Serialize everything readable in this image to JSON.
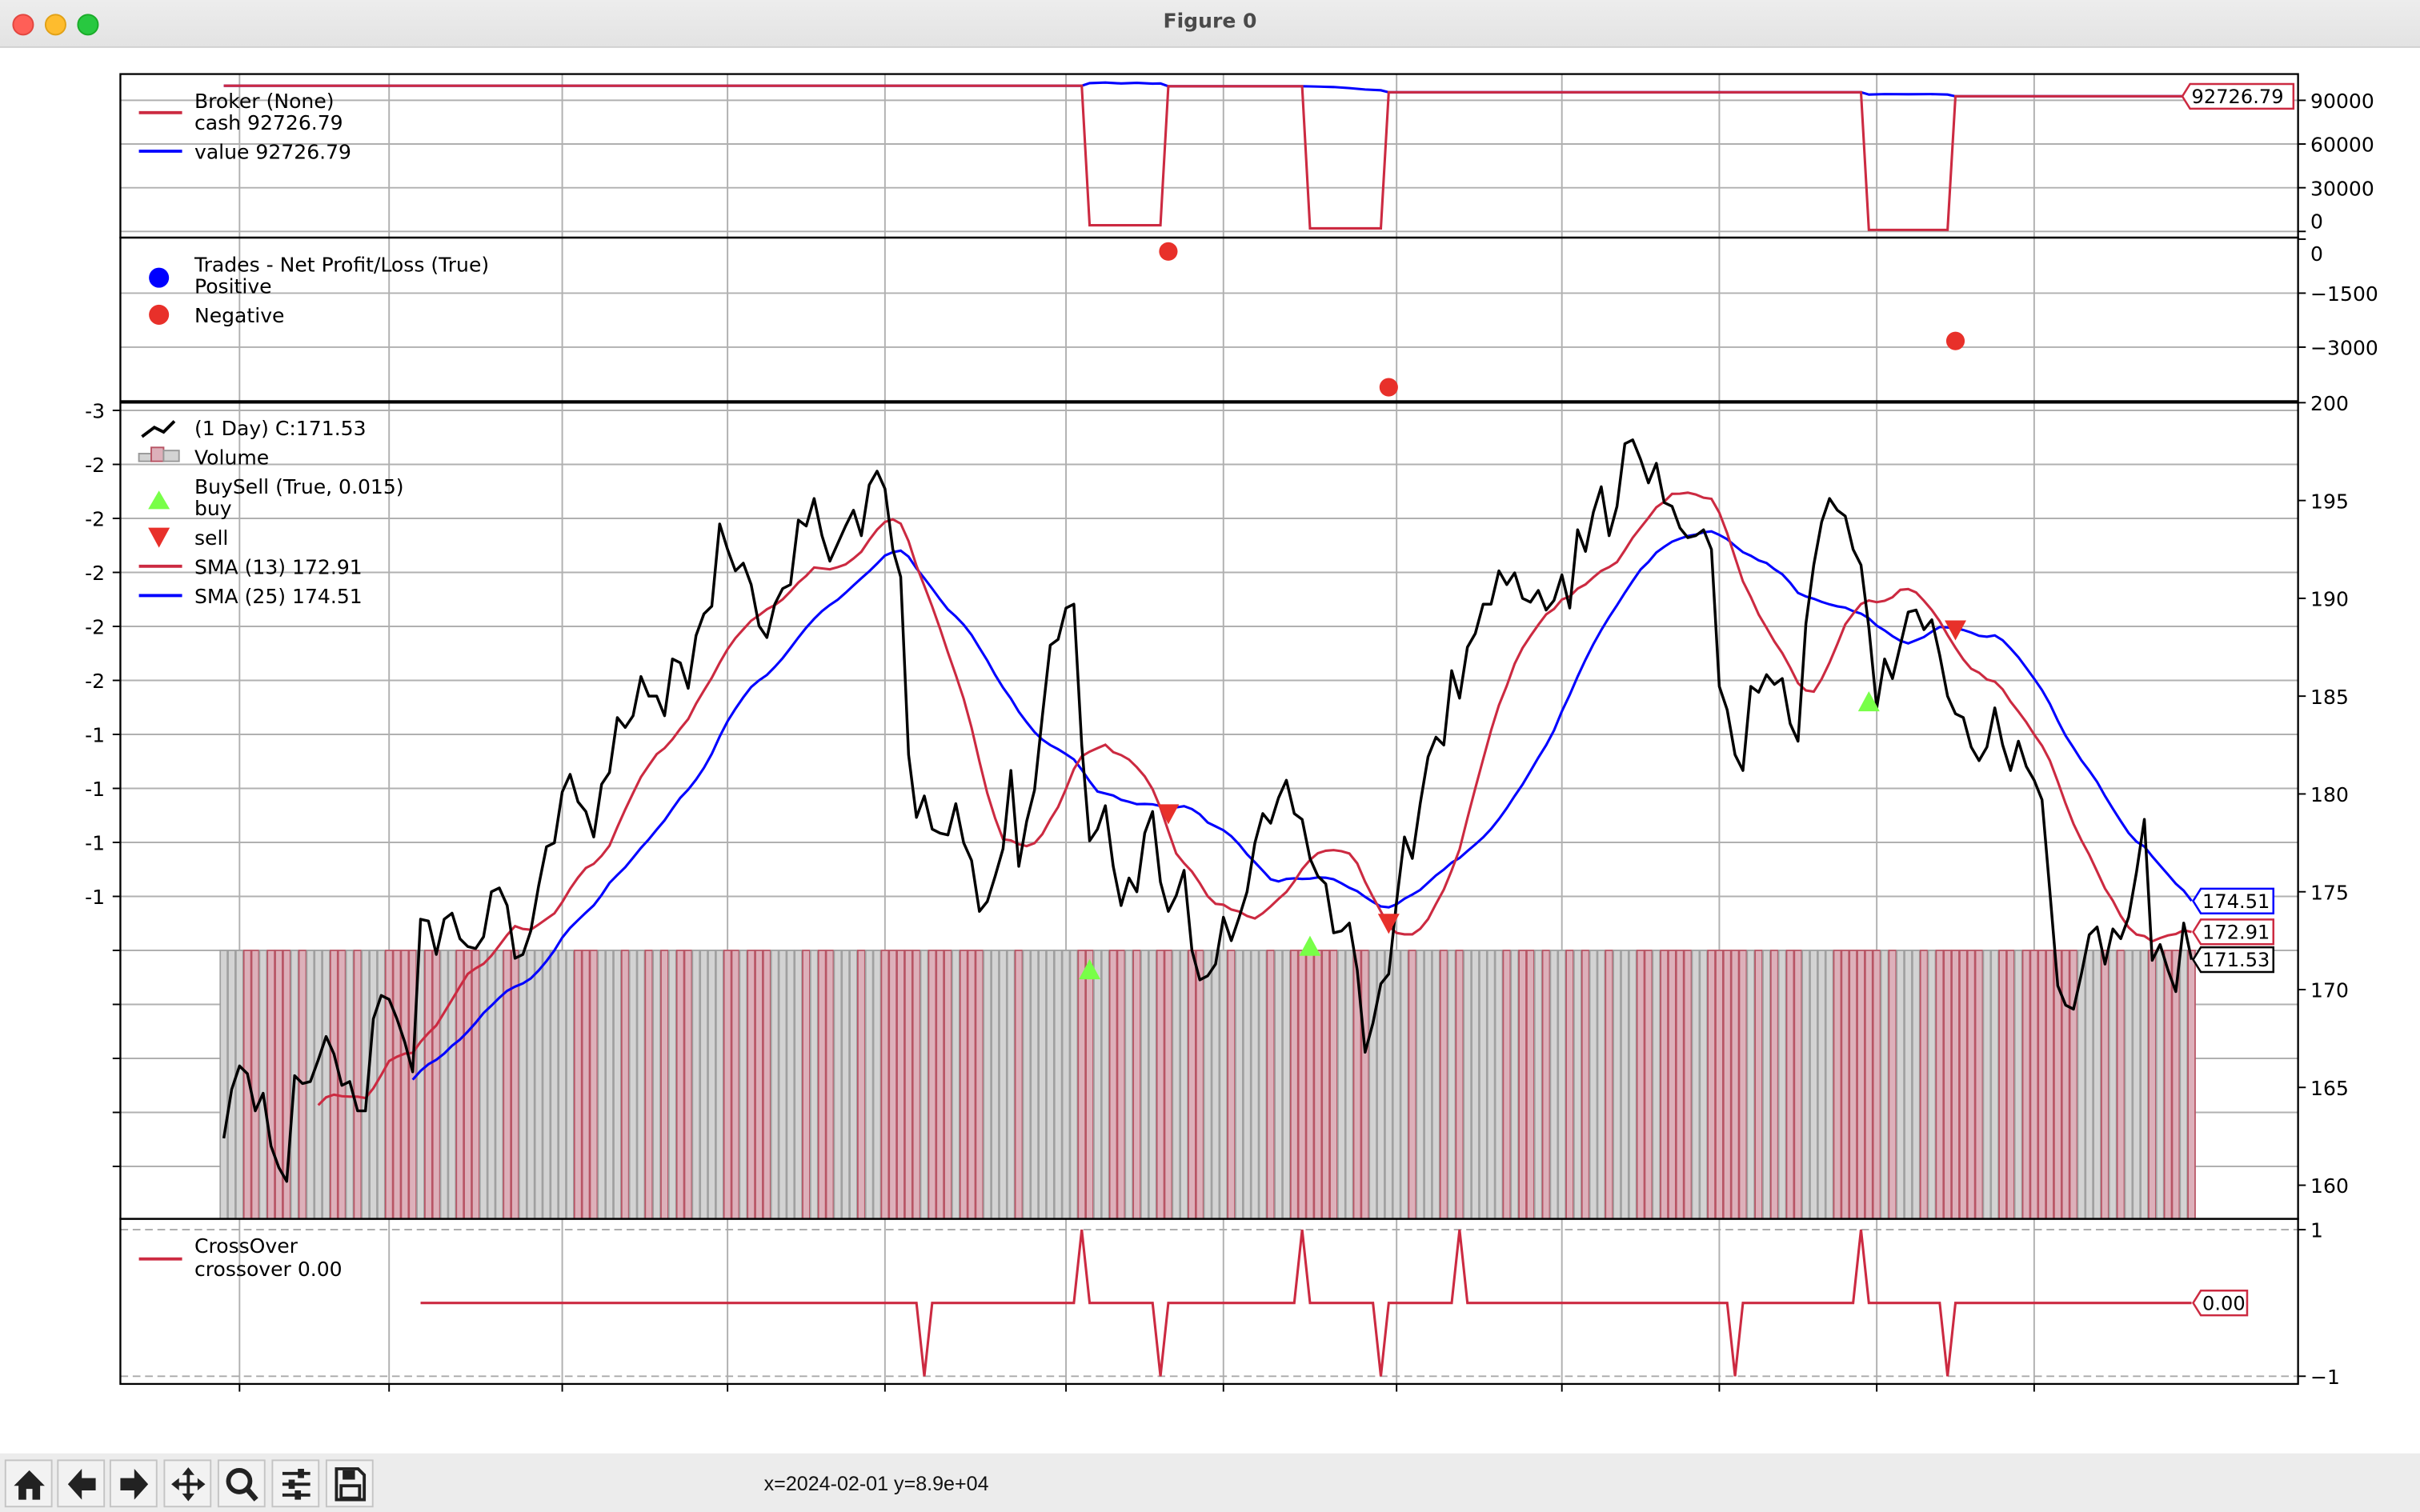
{
  "window": {
    "title": "Figure 0"
  },
  "toolbar": {
    "buttons": [
      {
        "icon": "home-icon",
        "label": "Home"
      },
      {
        "icon": "back-arrow-icon",
        "label": "Back"
      },
      {
        "icon": "forward-arrow-icon",
        "label": "Forward"
      },
      {
        "icon": "pan-move-icon",
        "label": "Pan"
      },
      {
        "icon": "zoom-magnifier-icon",
        "label": "Zoom"
      },
      {
        "icon": "configure-sliders-icon",
        "label": "Configure subplots"
      },
      {
        "icon": "save-floppy-icon",
        "label": "Save"
      }
    ],
    "status": "x=2024-02-01 y=8.9e+04"
  },
  "colors": {
    "red": "#cc2a41",
    "blue": "#0000ff",
    "black": "#000000",
    "buy": "#78ff48",
    "sell": "#e8302a",
    "grid": "#b0b0b0",
    "volume_up": "#d3d3d3",
    "volume_down": "#ddb0ba"
  },
  "legends": {
    "broker": {
      "title": "Broker (None)",
      "cash": "cash 92726.79",
      "value": "value 92726.79"
    },
    "trades": {
      "title": "Trades - Net Profit/Loss (True)",
      "positive": "Positive",
      "negative": "Negative"
    },
    "main": {
      "data": " (1 Day) C:171.53",
      "volume": "Volume",
      "buysell": "BuySell (True, 0.015)",
      "buy": "buy",
      "sell": "sell",
      "sma13": "SMA (13) 172.91",
      "sma25": "SMA (25) 174.51"
    },
    "crossover": {
      "title": "CrossOver",
      "value": "crossover 0.00"
    }
  },
  "chart_data": [
    {
      "panel": "broker",
      "type": "line",
      "yticks": [
        {
          "v": 90000,
          "label": "90000"
        },
        {
          "v": 60000,
          "label": "60000"
        },
        {
          "v": 30000,
          "label": "30000"
        },
        {
          "v": 0,
          "label": "0"
        }
      ],
      "ylim": [
        0,
        108000
      ],
      "grid": true,
      "last_label": "92726.79",
      "series": [
        {
          "name": "cash",
          "color": "#cc2a41",
          "points": [
            [
              0,
              100000
            ],
            [
              109,
              100000
            ],
            [
              110,
              4200
            ],
            [
              119,
              4200
            ],
            [
              120,
              99657
            ],
            [
              137,
              99657
            ],
            [
              138,
              2100
            ],
            [
              147,
              2100
            ],
            [
              148,
              95543
            ],
            [
              208,
              95543
            ],
            [
              209,
              1100
            ],
            [
              219,
              1100
            ],
            [
              220,
              92726.79
            ],
            [
              250,
              92726.79
            ]
          ]
        },
        {
          "name": "value",
          "color": "#0000ff",
          "points": [
            [
              0,
              100000
            ],
            [
              109,
              100000
            ],
            [
              110,
              101800
            ],
            [
              112,
              102200
            ],
            [
              114,
              101600
            ],
            [
              116,
              102000
            ],
            [
              118,
              101500
            ],
            [
              119,
              101600
            ],
            [
              120,
              99657
            ],
            [
              137,
              99657
            ],
            [
              138,
              99500
            ],
            [
              141,
              99100
            ],
            [
              143,
              98400
            ],
            [
              145,
              97400
            ],
            [
              147,
              96900
            ],
            [
              148,
              95543
            ],
            [
              208,
              95543
            ],
            [
              209,
              93900
            ],
            [
              211,
              94300
            ],
            [
              214,
              94100
            ],
            [
              217,
              94300
            ],
            [
              219,
              93900
            ],
            [
              220,
              92726.79
            ],
            [
              250,
              92726.79
            ]
          ]
        }
      ]
    },
    {
      "panel": "trades",
      "type": "scatter",
      "yticks": [
        {
          "v": 0,
          "label": "0"
        },
        {
          "v": -1500,
          "label": "−1500"
        },
        {
          "v": -3000,
          "label": "−3000"
        }
      ],
      "ylim": [
        -4500,
        0
      ],
      "grid": true,
      "positive": [],
      "negative": [
        [
          120,
          -343
        ],
        [
          148,
          -4114
        ],
        [
          220,
          -2829
        ]
      ]
    },
    {
      "panel": "price",
      "type": "line",
      "yticks": [
        200,
        195,
        190,
        185,
        180,
        175,
        170,
        165,
        160
      ],
      "ylim": [
        158.3,
        200
      ],
      "left_tick_labels": [
        "-3",
        "-2",
        "-2",
        "-2",
        "-2",
        "-2",
        "-1",
        "-1",
        "-1",
        "-1",
        "",
        "",
        "",
        "",
        ""
      ],
      "grid": true,
      "x_grid_bars": [
        2,
        21,
        43,
        64,
        84,
        107,
        127,
        149,
        170,
        190,
        210,
        230
      ],
      "close": [
        162.4,
        164.9,
        166.1,
        165.7,
        163.8,
        164.7,
        162.0,
        160.9,
        160.2,
        165.6,
        165.2,
        165.3,
        166.4,
        167.6,
        166.7,
        165.1,
        165.3,
        163.8,
        163.8,
        168.5,
        169.7,
        169.5,
        168.5,
        167.3,
        165.8,
        173.6,
        173.5,
        171.8,
        173.6,
        173.9,
        172.6,
        172.2,
        172.1,
        172.7,
        175.0,
        175.2,
        174.3,
        171.6,
        171.8,
        173.0,
        175.3,
        177.3,
        177.5,
        180.1,
        181.0,
        179.6,
        179.1,
        177.8,
        180.5,
        181.1,
        183.9,
        183.4,
        184.0,
        186.0,
        185.0,
        185.0,
        184.0,
        186.9,
        186.7,
        185.4,
        188.1,
        189.2,
        189.6,
        193.8,
        192.5,
        191.4,
        191.8,
        190.7,
        188.6,
        188.0,
        189.7,
        190.5,
        190.7,
        194.0,
        193.7,
        195.1,
        193.2,
        191.9,
        192.8,
        193.7,
        194.5,
        193.2,
        195.8,
        196.5,
        195.6,
        192.5,
        191.1,
        182.0,
        178.8,
        179.9,
        178.2,
        178.0,
        177.9,
        179.5,
        177.5,
        176.6,
        174.0,
        174.5,
        175.8,
        177.2,
        181.2,
        176.3,
        178.6,
        180.2,
        184.0,
        187.6,
        187.9,
        189.5,
        189.7,
        182.5,
        177.6,
        178.2,
        179.4,
        176.3,
        174.3,
        175.7,
        175.0,
        178.0,
        179.1,
        175.5,
        174.0,
        174.8,
        176.1,
        172.0,
        170.5,
        170.7,
        171.3,
        173.7,
        172.5,
        173.7,
        175.0,
        177.5,
        179.0,
        178.5,
        179.8,
        180.7,
        179.0,
        178.7,
        176.7,
        175.8,
        175.4,
        172.9,
        173.0,
        173.4,
        171.0,
        166.8,
        168.3,
        170.3,
        170.8,
        174.5,
        177.8,
        176.7,
        179.5,
        181.9,
        182.9,
        182.5,
        186.3,
        184.9,
        187.5,
        188.2,
        189.7,
        189.7,
        191.4,
        190.7,
        191.3,
        190.0,
        189.8,
        190.4,
        189.4,
        189.9,
        191.2,
        189.5,
        193.5,
        192.4,
        194.4,
        195.7,
        193.2,
        194.7,
        197.9,
        198.1,
        197.1,
        195.9,
        196.9,
        194.9,
        194.7,
        193.6,
        193.1,
        193.2,
        193.5,
        192.5,
        185.5,
        184.3,
        182.0,
        181.2,
        185.5,
        185.2,
        186.1,
        185.6,
        185.9,
        183.6,
        182.7,
        188.7,
        191.7,
        193.9,
        195.1,
        194.5,
        194.2,
        192.5,
        191.7,
        188.5,
        184.4,
        186.9,
        185.9,
        187.6,
        189.3,
        189.4,
        188.4,
        188.9,
        187.1,
        185.0,
        184.1,
        183.9,
        182.4,
        181.7,
        182.4,
        184.4,
        182.5,
        181.2,
        182.7,
        181.4,
        180.7,
        179.7,
        175.0,
        170.2,
        169.2,
        169.0,
        170.8,
        172.8,
        173.2,
        171.3,
        173.1,
        172.6,
        173.7,
        176.0,
        178.7,
        171.5,
        172.3,
        171.0,
        169.9,
        173.4,
        171.53
      ],
      "sma_periods": [
        13,
        25
      ],
      "last_labels": {
        "close": "171.53",
        "sma13": "172.91",
        "sma25": "174.51"
      },
      "buy": [
        [
          110,
          171.0
        ],
        [
          138,
          172.2
        ],
        [
          209,
          184.7
        ]
      ],
      "sell": [
        [
          120,
          179.0
        ],
        [
          148,
          173.4
        ],
        [
          220,
          188.4
        ]
      ]
    },
    {
      "panel": "crossover",
      "type": "line",
      "yticks": [
        {
          "v": 1,
          "label": "1"
        },
        {
          "v": -1,
          "label": "−1"
        }
      ],
      "ylim": [
        -1.1,
        1.1
      ],
      "start_bar": 25,
      "events": [
        [
          89,
          -1
        ],
        [
          109,
          1
        ],
        [
          119,
          -1
        ],
        [
          137,
          1
        ],
        [
          147,
          -1
        ],
        [
          157,
          1
        ],
        [
          192,
          -1
        ],
        [
          208,
          1
        ],
        [
          219,
          -1
        ]
      ],
      "last_label": "0.00"
    }
  ]
}
